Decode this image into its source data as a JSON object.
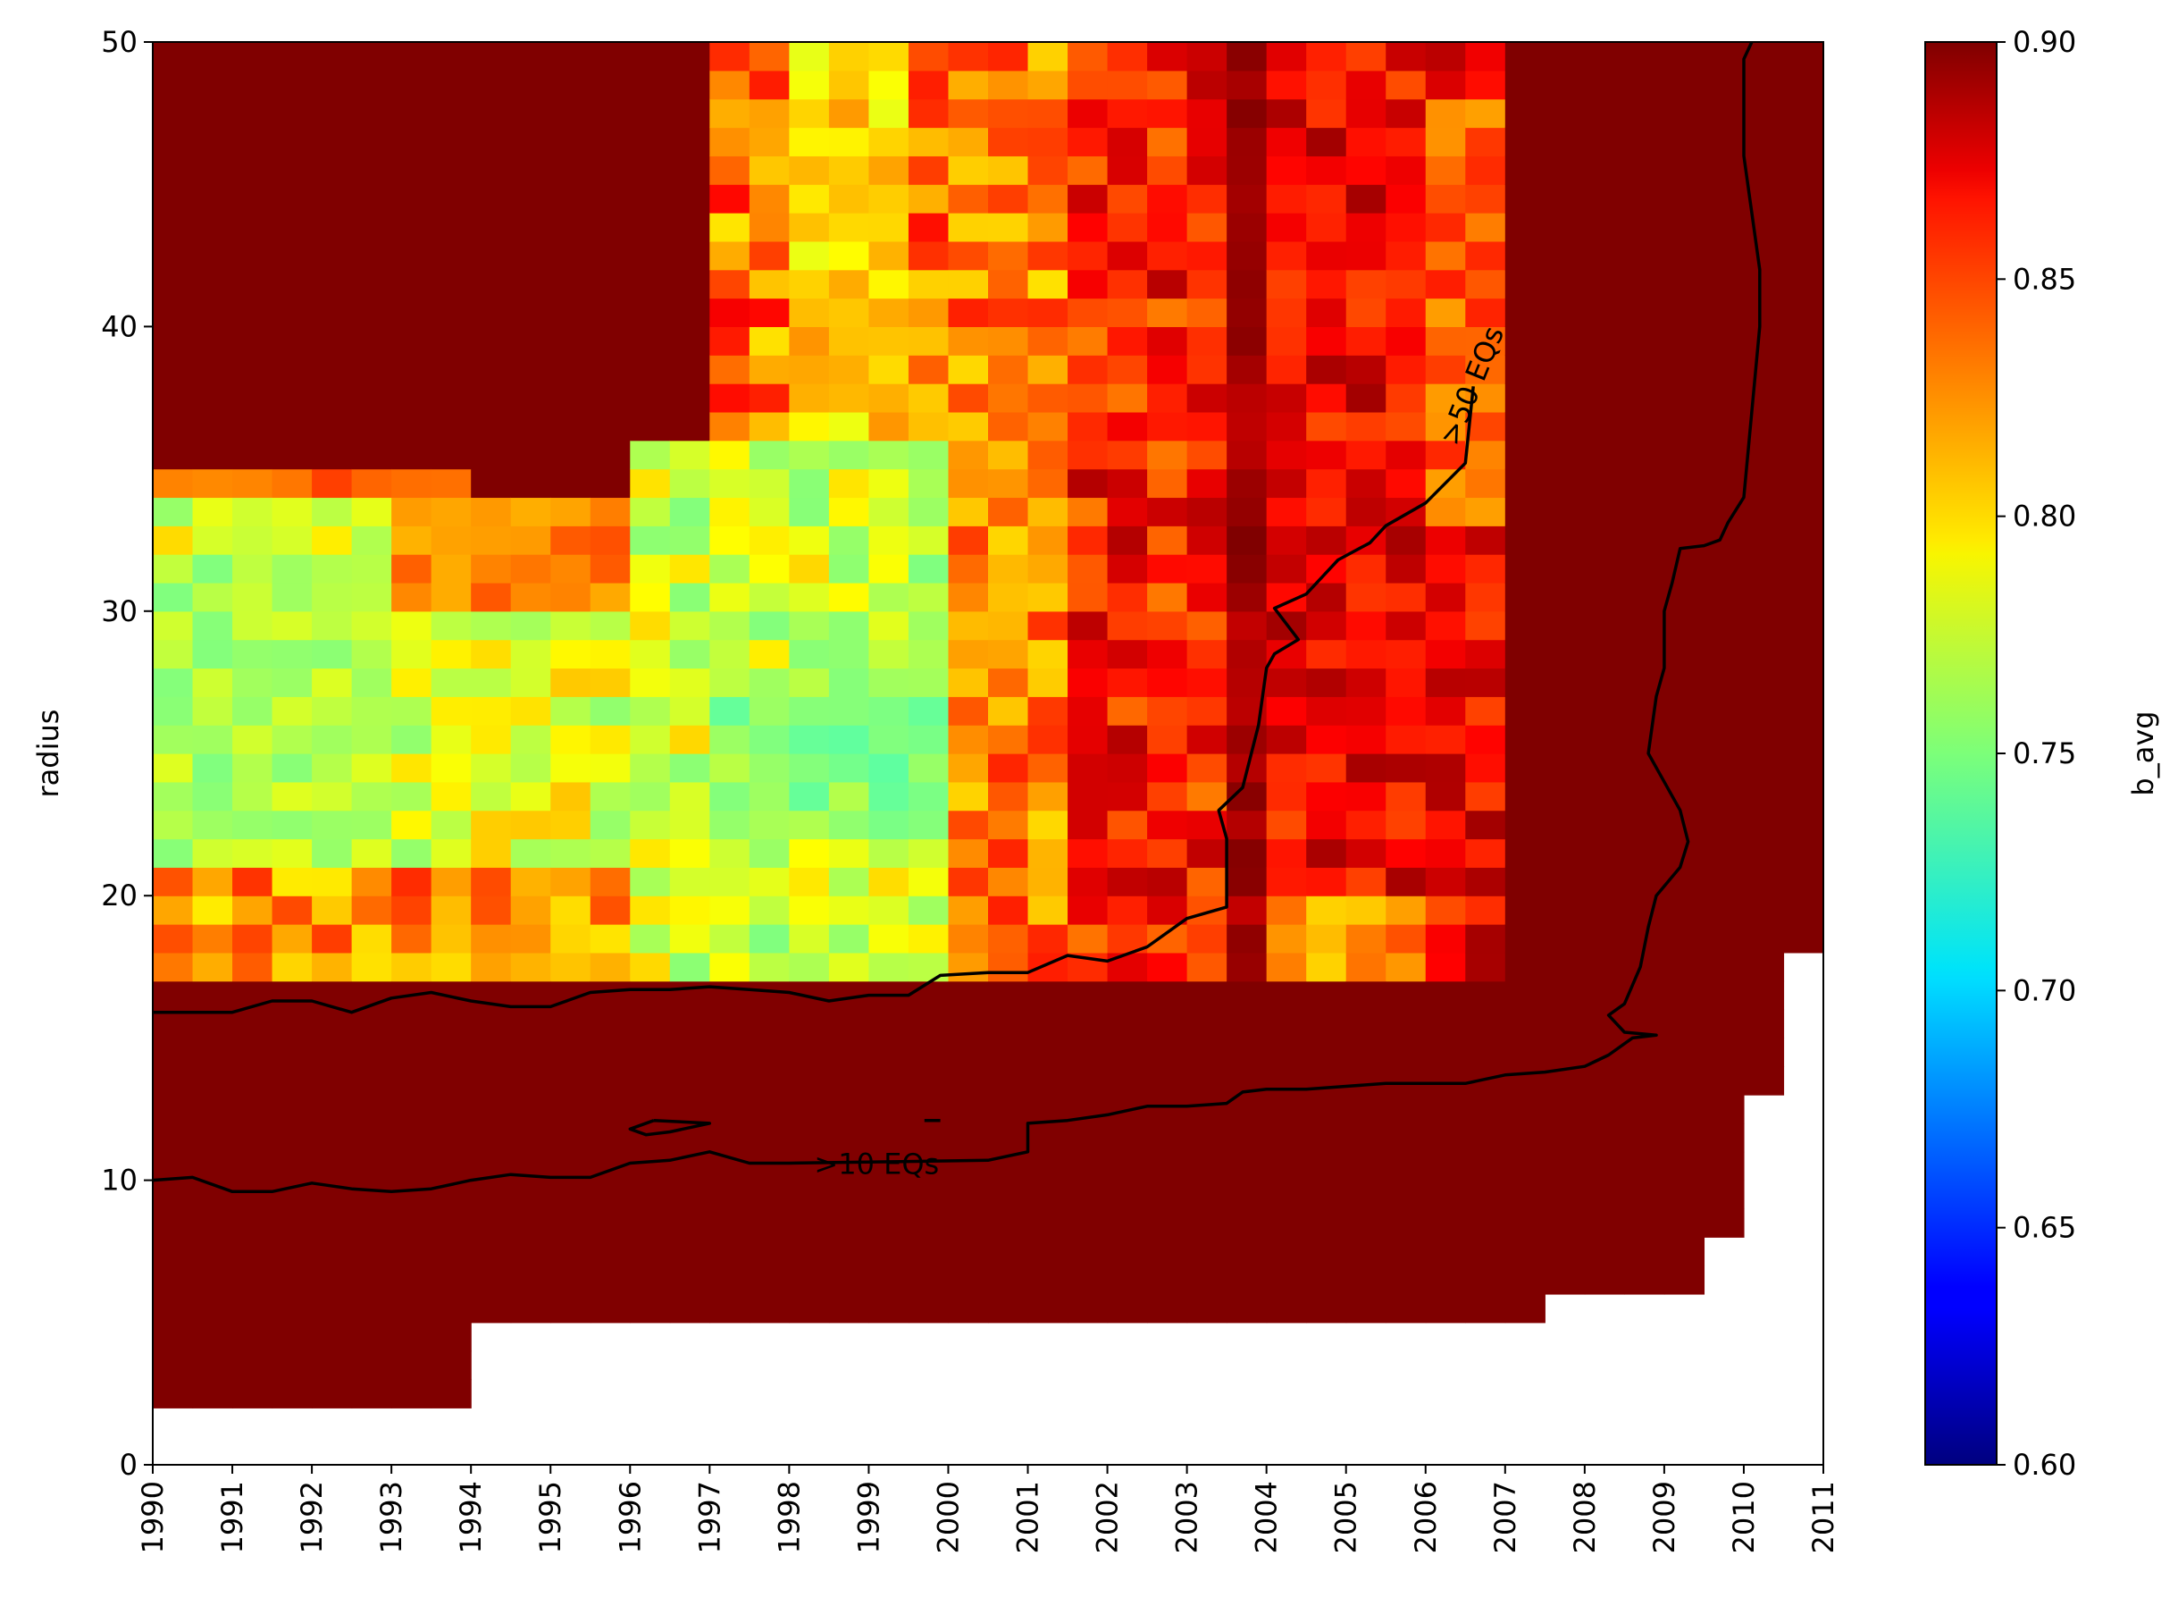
{
  "chart_data": {
    "type": "heatmap",
    "title": "",
    "xlabel": "",
    "ylabel": "radius",
    "colorbar_label": "b_avg",
    "colormap": "jet",
    "xlim": [
      1990,
      2011
    ],
    "ylim": [
      0,
      50
    ],
    "clim": [
      0.6,
      0.9
    ],
    "cell_width_years": 0.5,
    "cell_height_radius": 1,
    "x_ticks": [
      "1990",
      "1991",
      "1992",
      "1993",
      "1994",
      "1995",
      "1996",
      "1997",
      "1998",
      "1999",
      "2000",
      "2001",
      "2002",
      "2003",
      "2004",
      "2005",
      "2006",
      "2007",
      "2008",
      "2009",
      "2010",
      "2011"
    ],
    "y_ticks": [
      "0",
      "10",
      "20",
      "30",
      "40",
      "50"
    ],
    "colorbar_ticks": [
      "0.60",
      "0.65",
      "0.70",
      "0.75",
      "0.80",
      "0.85",
      "0.90"
    ],
    "colorbar_tick_values": [
      0.6,
      0.65,
      0.7,
      0.75,
      0.8,
      0.85,
      0.9
    ],
    "grid": false,
    "no_data_boundary": {
      "x_start": [
        1990,
        1994,
        2007.5,
        2009.5,
        2010,
        2010.5,
        2011
      ],
      "min_radius": [
        2,
        5,
        6,
        8,
        13,
        18,
        18
      ]
    },
    "background_value": 0.9,
    "regions": [
      {
        "x": [
          1990,
          1996
        ],
        "y": [
          17,
          34
        ],
        "base": 0.78,
        "amp": 0.025
      },
      {
        "x": [
          1990,
          1993
        ],
        "y": [
          20,
          32
        ],
        "base": 0.765,
        "amp": 0.015
      },
      {
        "x": [
          1993,
          1996
        ],
        "y": [
          30,
          34
        ],
        "base": 0.825,
        "amp": 0.015
      },
      {
        "x": [
          1990,
          1994
        ],
        "y": [
          34,
          35
        ],
        "base": 0.84,
        "amp": 0.02
      },
      {
        "x": [
          1990,
          1996
        ],
        "y": [
          17,
          21
        ],
        "base": 0.82,
        "amp": 0.03
      },
      {
        "x": [
          1996,
          2000
        ],
        "y": [
          17,
          36
        ],
        "base": 0.775,
        "amp": 0.025
      },
      {
        "x": [
          1997,
          2000
        ],
        "y": [
          22,
          28
        ],
        "base": 0.755,
        "amp": 0.015
      },
      {
        "x": [
          1997,
          2000
        ],
        "y": [
          36,
          50
        ],
        "base": 0.83,
        "amp": 0.035
      },
      {
        "x": [
          1998,
          1999.5
        ],
        "y": [
          36,
          50
        ],
        "base": 0.8,
        "amp": 0.02
      },
      {
        "x": [
          2000,
          2001.5
        ],
        "y": [
          17,
          50
        ],
        "base": 0.825,
        "amp": 0.03
      },
      {
        "x": [
          2001.5,
          2003.5
        ],
        "y": [
          17,
          50
        ],
        "base": 0.855,
        "amp": 0.03
      },
      {
        "x": [
          2003.5,
          2004
        ],
        "y": [
          17,
          50
        ],
        "base": 0.89,
        "amp": 0.01
      },
      {
        "x": [
          2004,
          2007
        ],
        "y": [
          17,
          50
        ],
        "base": 0.865,
        "amp": 0.025
      },
      {
        "x": [
          2004,
          2006
        ],
        "y": [
          17,
          20
        ],
        "base": 0.82,
        "amp": 0.02
      },
      {
        "x": [
          2006,
          2007
        ],
        "y": [
          33,
          48
        ],
        "base": 0.835,
        "amp": 0.02
      }
    ],
    "contours": [
      {
        "label": ">10 EQs",
        "label_at": [
          1999.1,
          10.5
        ],
        "points": [
          [
            1990,
            10
          ],
          [
            1990.5,
            10.1
          ],
          [
            1991,
            9.6
          ],
          [
            1991.5,
            9.6
          ],
          [
            1992,
            9.9
          ],
          [
            1992.5,
            9.7
          ],
          [
            1993,
            9.6
          ],
          [
            1993.5,
            9.7
          ],
          [
            1994,
            10
          ],
          [
            1994.5,
            10.2
          ],
          [
            1995,
            10.1
          ],
          [
            1995.5,
            10.1
          ],
          [
            1996,
            10.6
          ],
          [
            1996.5,
            10.7
          ],
          [
            1997,
            11
          ],
          [
            1997.5,
            10.6
          ],
          [
            1998,
            10.6
          ],
          [
            2000.5,
            10.7
          ],
          [
            2001,
            11
          ],
          [
            2001,
            12
          ],
          [
            2001.5,
            12.1
          ],
          [
            2002,
            12.3
          ],
          [
            2002.5,
            12.6
          ],
          [
            2003,
            12.6
          ],
          [
            2003.5,
            12.7
          ],
          [
            2003.7,
            13.1
          ],
          [
            2004,
            13.2
          ],
          [
            2004.5,
            13.2
          ],
          [
            2005,
            13.3
          ],
          [
            2005.5,
            13.4
          ],
          [
            2006,
            13.4
          ],
          [
            2006.5,
            13.4
          ],
          [
            2007,
            13.7
          ],
          [
            2007.5,
            13.8
          ],
          [
            2008,
            14
          ],
          [
            2008.3,
            14.4
          ],
          [
            2008.6,
            15
          ],
          [
            2008.9,
            15.1
          ],
          [
            2008.5,
            15.2
          ],
          [
            2008.3,
            15.8
          ],
          [
            2008.5,
            16.2
          ],
          [
            2008.7,
            17.5
          ],
          [
            2008.8,
            18.9
          ],
          [
            2008.9,
            20
          ],
          [
            2009.2,
            21
          ],
          [
            2009.3,
            21.9
          ],
          [
            2009.2,
            23
          ],
          [
            2009,
            24
          ],
          [
            2008.8,
            25
          ],
          [
            2008.9,
            27
          ],
          [
            2009,
            28
          ],
          [
            2009,
            30
          ],
          [
            2009.1,
            31
          ],
          [
            2009.2,
            32.2
          ],
          [
            2009.5,
            32.3
          ],
          [
            2009.7,
            32.5
          ],
          [
            2009.8,
            33.1
          ],
          [
            2010,
            34
          ],
          [
            2010.1,
            37
          ],
          [
            2010.2,
            40
          ],
          [
            2010.2,
            42
          ],
          [
            2010.1,
            44
          ],
          [
            2010,
            46
          ],
          [
            2010,
            48
          ],
          [
            2010,
            49.4
          ],
          [
            2010.1,
            50
          ]
        ]
      },
      {
        "label": ">10 EQs",
        "points": [
          [
            1996.3,
            12.1
          ],
          [
            1996,
            11.8
          ],
          [
            1996.2,
            11.6
          ],
          [
            1996.5,
            11.7
          ],
          [
            1997,
            12
          ],
          [
            1996.3,
            12.1
          ]
        ]
      },
      {
        "label": ">10 EQs",
        "points": [
          [
            1999.7,
            12.1
          ],
          [
            1999.9,
            12.1
          ]
        ]
      },
      {
        "label": ">50 EQs",
        "label_at": [
          2006.6,
          37.9
        ],
        "points": [
          [
            1990,
            15.9
          ],
          [
            1991,
            15.9
          ],
          [
            1991.5,
            16.3
          ],
          [
            1992,
            16.3
          ],
          [
            1992.5,
            15.9
          ],
          [
            1993,
            16.4
          ],
          [
            1993.5,
            16.6
          ],
          [
            1994,
            16.3
          ],
          [
            1994.5,
            16.1
          ],
          [
            1995,
            16.1
          ],
          [
            1995.5,
            16.6
          ],
          [
            1996,
            16.7
          ],
          [
            1996.5,
            16.7
          ],
          [
            1997,
            16.8
          ],
          [
            1997.5,
            16.7
          ],
          [
            1998,
            16.6
          ],
          [
            1998.5,
            16.3
          ],
          [
            1999,
            16.5
          ],
          [
            1999.5,
            16.5
          ],
          [
            1999.9,
            17.2
          ],
          [
            2000.5,
            17.3
          ],
          [
            2001,
            17.3
          ],
          [
            2001.5,
            17.9
          ],
          [
            2002,
            17.7
          ],
          [
            2002.5,
            18.2
          ],
          [
            2003,
            19.2
          ],
          [
            2003.5,
            19.6
          ],
          [
            2003.5,
            20.5
          ],
          [
            2003.5,
            22
          ],
          [
            2003.4,
            23
          ],
          [
            2003.7,
            23.8
          ],
          [
            2003.9,
            26
          ],
          [
            2004,
            28
          ],
          [
            2004.1,
            28.5
          ],
          [
            2004.4,
            29
          ],
          [
            2004.1,
            30.1
          ],
          [
            2004.5,
            30.6
          ],
          [
            2004.9,
            31.8
          ],
          [
            2005.3,
            32.4
          ],
          [
            2005.5,
            33
          ],
          [
            2006,
            33.8
          ],
          [
            2006.5,
            35.2
          ],
          [
            2006.6,
            37.9
          ]
        ]
      }
    ]
  }
}
